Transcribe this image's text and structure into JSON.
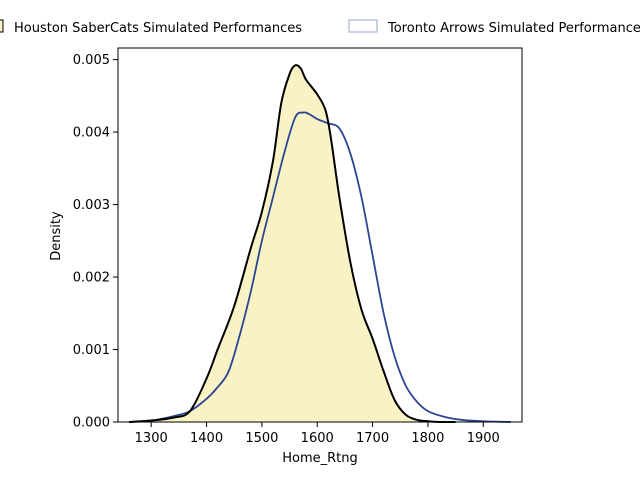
{
  "chart_data": {
    "type": "area",
    "title": "",
    "xlabel": "Home_Rtng",
    "ylabel": "Density",
    "xlim": [
      1240,
      1970
    ],
    "ylim": [
      0,
      0.00516
    ],
    "xticks": [
      1300,
      1400,
      1500,
      1600,
      1700,
      1800,
      1900
    ],
    "yticks": [
      0.0,
      0.001,
      0.002,
      0.003,
      0.004,
      0.005
    ],
    "xtick_labels": [
      "1300",
      "1400",
      "1500",
      "1600",
      "1700",
      "1800",
      "1900"
    ],
    "ytick_labels": [
      "0.000",
      "0.001",
      "0.002",
      "0.003",
      "0.004",
      "0.005"
    ],
    "grid": false,
    "legend_position": "top",
    "series": [
      {
        "name": "Houston SaberCats Simulated Performances",
        "fill": "#f9f2c4",
        "line": "#000000",
        "filled": true,
        "x": [
          1260,
          1300,
          1340,
          1370,
          1400,
          1420,
          1450,
          1480,
          1500,
          1520,
          1535,
          1550,
          1560,
          1570,
          1580,
          1600,
          1615,
          1625,
          1640,
          1660,
          1680,
          1700,
          1720,
          1740,
          1760,
          1780,
          1800,
          1820,
          1850
        ],
        "y": [
          0.0,
          2e-05,
          6e-05,
          0.00015,
          0.0006,
          0.001,
          0.0016,
          0.0024,
          0.0029,
          0.0036,
          0.0044,
          0.0048,
          0.00492,
          0.00488,
          0.00472,
          0.00452,
          0.0043,
          0.0039,
          0.0031,
          0.0022,
          0.00155,
          0.00115,
          0.0007,
          0.0003,
          0.0001,
          3e-05,
          1e-05,
          0.0,
          0.0
        ]
      },
      {
        "name": "Toronto Arrows Simulated Performances",
        "fill": "none",
        "line": "#2b4494",
        "filled": false,
        "x": [
          1260,
          1300,
          1340,
          1370,
          1400,
          1420,
          1440,
          1460,
          1480,
          1500,
          1520,
          1540,
          1560,
          1575,
          1585,
          1600,
          1620,
          1640,
          1660,
          1680,
          1700,
          1720,
          1740,
          1760,
          1780,
          1800,
          1830,
          1860,
          1900,
          1950
        ],
        "y": [
          0.0,
          2e-05,
          8e-05,
          0.00015,
          0.00032,
          0.00048,
          0.0007,
          0.0012,
          0.0018,
          0.0025,
          0.0031,
          0.0037,
          0.0042,
          0.00427,
          0.00425,
          0.00418,
          0.00412,
          0.00405,
          0.0037,
          0.0031,
          0.0023,
          0.0015,
          0.0009,
          0.0005,
          0.00028,
          0.00015,
          7e-05,
          3e-05,
          1e-05,
          0.0
        ]
      }
    ]
  }
}
